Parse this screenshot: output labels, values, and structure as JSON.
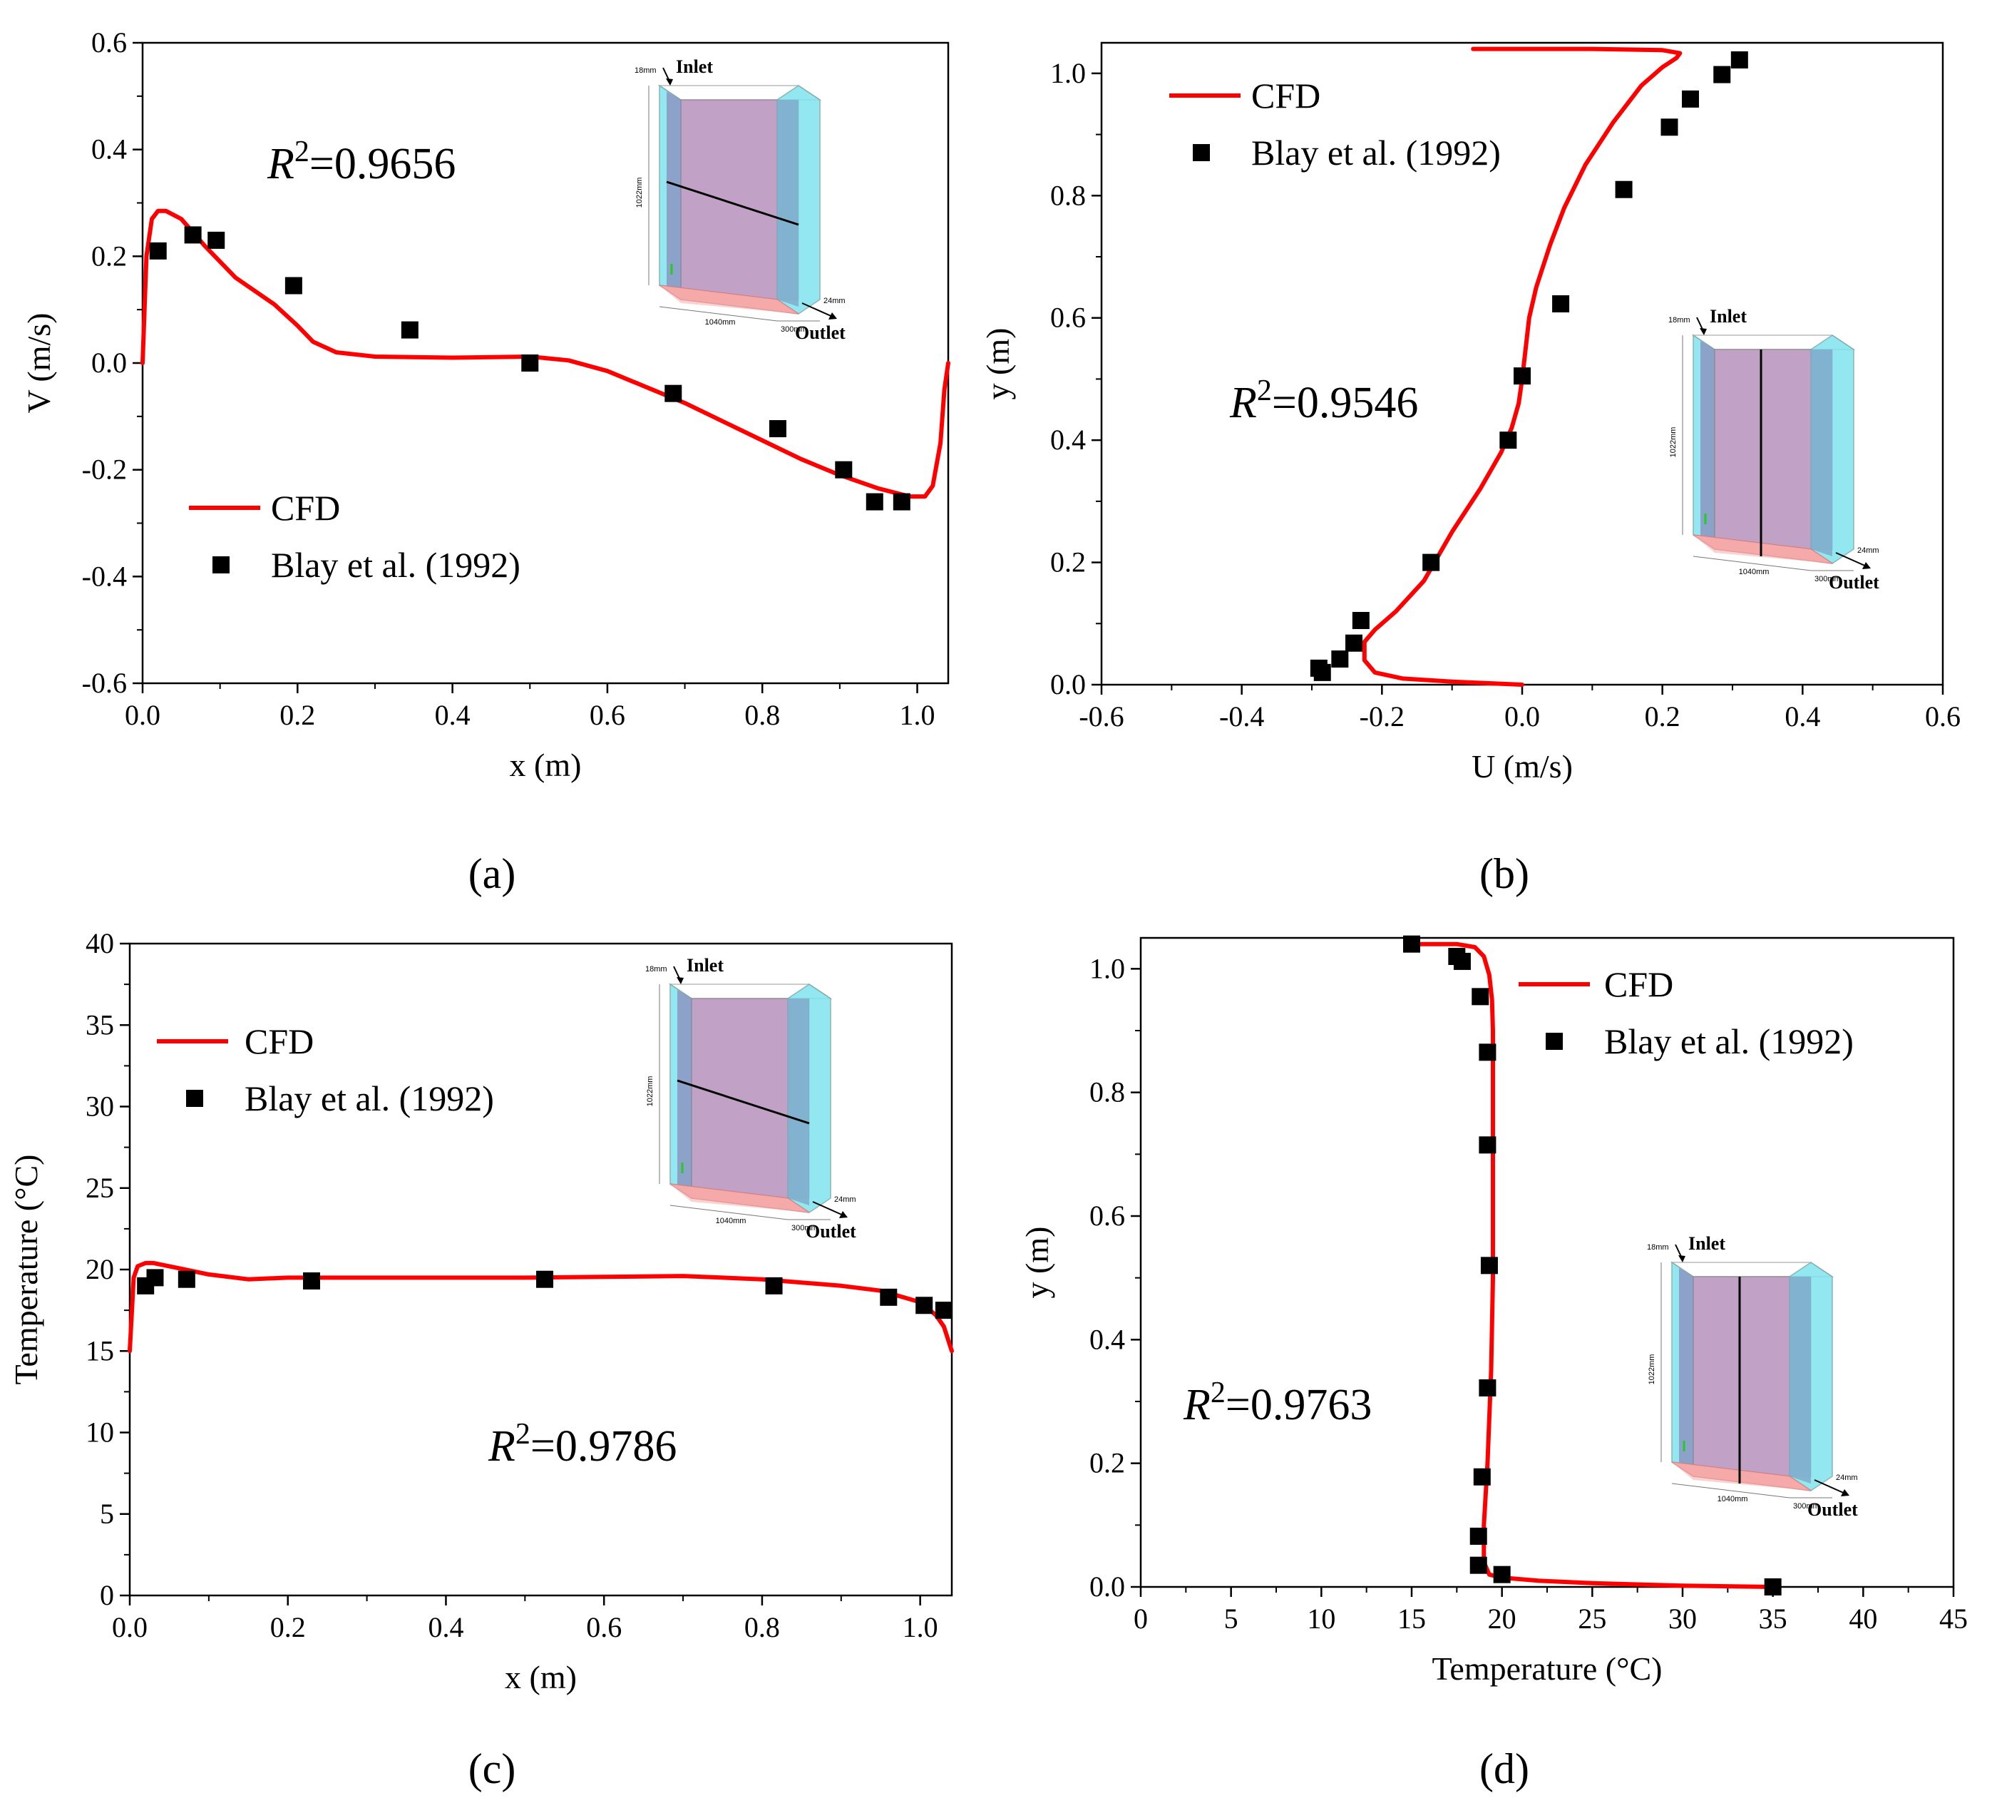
{
  "chart_data": [
    {
      "id": "a",
      "type": "line+scatter",
      "panel_label": "(a)",
      "xlabel": "x (m)",
      "ylabel": "V (m/s)",
      "xlim": [
        0,
        1.04
      ],
      "ylim": [
        -0.6,
        0.6
      ],
      "xticks": [
        "0.0",
        "0.2",
        "0.4",
        "0.6",
        "0.8",
        "1.0"
      ],
      "yticks": [
        "-0.6",
        "-0.4",
        "-0.2",
        "0.0",
        "0.2",
        "0.4",
        "0.6"
      ],
      "xtick_values": [
        0,
        0.2,
        0.4,
        0.6,
        0.8,
        1.0
      ],
      "ytick_values": [
        -0.6,
        -0.4,
        -0.2,
        0,
        0.2,
        0.4,
        0.6
      ],
      "r2_label": "R",
      "r2_exp": "2",
      "r2_value": "=0.9656",
      "legend": {
        "cfd": "CFD",
        "exp": "Blay et al. (1992)"
      },
      "series": [
        {
          "name": "CFD",
          "color": "#ff0000",
          "x": [
            0,
            0.005,
            0.012,
            0.02,
            0.03,
            0.05,
            0.08,
            0.12,
            0.17,
            0.2,
            0.22,
            0.25,
            0.3,
            0.4,
            0.5,
            0.55,
            0.6,
            0.65,
            0.7,
            0.75,
            0.8,
            0.85,
            0.9,
            0.95,
            0.99,
            1.01,
            1.02,
            1.03,
            1.035,
            1.04
          ],
          "y": [
            0,
            0.2,
            0.27,
            0.285,
            0.285,
            0.27,
            0.22,
            0.16,
            0.11,
            0.07,
            0.04,
            0.02,
            0.012,
            0.01,
            0.012,
            0.005,
            -0.015,
            -0.045,
            -0.075,
            -0.11,
            -0.145,
            -0.18,
            -0.21,
            -0.235,
            -0.25,
            -0.25,
            -0.23,
            -0.15,
            -0.05,
            0
          ]
        },
        {
          "name": "Blay et al. (1992)",
          "color": "#000000",
          "x": [
            0.02,
            0.065,
            0.095,
            0.195,
            0.345,
            0.5,
            0.685,
            0.82,
            0.905,
            0.945,
            0.98
          ],
          "y": [
            0.21,
            0.24,
            0.23,
            0.145,
            0.062,
            0.0,
            -0.057,
            -0.123,
            -0.2,
            -0.26,
            -0.26
          ]
        }
      ]
    },
    {
      "id": "b",
      "type": "line+scatter",
      "panel_label": "(b)",
      "xlabel": "U (m/s)",
      "ylabel": "y (m)",
      "xlim": [
        -0.6,
        0.6
      ],
      "ylim": [
        0,
        1.05
      ],
      "xticks": [
        "-0.6",
        "-0.4",
        "-0.2",
        "0.0",
        "0.2",
        "0.4",
        "0.6"
      ],
      "yticks": [
        "0.0",
        "0.2",
        "0.4",
        "0.6",
        "0.8",
        "1.0"
      ],
      "xtick_values": [
        -0.6,
        -0.4,
        -0.2,
        0,
        0.2,
        0.4,
        0.6
      ],
      "ytick_values": [
        0,
        0.2,
        0.4,
        0.6,
        0.8,
        1.0
      ],
      "r2_label": "R",
      "r2_exp": "2",
      "r2_value": "=0.9546",
      "legend": {
        "cfd": "CFD",
        "exp": "Blay et al. (1992)"
      },
      "series": [
        {
          "name": "CFD",
          "color": "#ff0000",
          "x": [
            0,
            -0.1,
            -0.17,
            -0.21,
            -0.225,
            -0.225,
            -0.21,
            -0.18,
            -0.14,
            -0.1,
            -0.06,
            -0.03,
            -0.015,
            -0.005,
            0.0,
            0.005,
            0.01,
            0.02,
            0.04,
            0.06,
            0.09,
            0.13,
            0.17,
            0.2,
            0.22,
            0.225,
            0.2,
            0.1,
            0.0,
            -0.07
          ],
          "y": [
            0,
            0.005,
            0.01,
            0.02,
            0.04,
            0.07,
            0.09,
            0.12,
            0.17,
            0.25,
            0.32,
            0.38,
            0.42,
            0.46,
            0.5,
            0.55,
            0.6,
            0.65,
            0.72,
            0.78,
            0.85,
            0.92,
            0.98,
            1.01,
            1.025,
            1.033,
            1.038,
            1.04,
            1.04,
            1.04
          ]
        },
        {
          "name": "Blay et al. (1992)",
          "color": "#000000",
          "x": [
            -0.29,
            -0.285,
            -0.26,
            -0.24,
            -0.23,
            -0.13,
            -0.02,
            0.0,
            0.055,
            0.145,
            0.21,
            0.24,
            0.285,
            0.31
          ],
          "y": [
            0.027,
            0.02,
            0.042,
            0.068,
            0.105,
            0.2,
            0.4,
            0.505,
            0.623,
            0.81,
            0.912,
            0.958,
            0.998,
            1.022
          ]
        }
      ]
    },
    {
      "id": "c",
      "type": "line+scatter",
      "panel_label": "(c)",
      "xlabel": "x (m)",
      "ylabel": "Temperature (°C)",
      "xlim": [
        0,
        1.04
      ],
      "ylim": [
        0,
        40
      ],
      "xticks": [
        "0.0",
        "0.2",
        "0.4",
        "0.6",
        "0.8",
        "1.0"
      ],
      "yticks": [
        "0",
        "5",
        "10",
        "15",
        "20",
        "25",
        "30",
        "35",
        "40"
      ],
      "xtick_values": [
        0,
        0.2,
        0.4,
        0.6,
        0.8,
        1.0
      ],
      "ytick_values": [
        0,
        5,
        10,
        15,
        20,
        25,
        30,
        35,
        40
      ],
      "r2_label": "R",
      "r2_exp": "2",
      "r2_value": "=0.9786",
      "legend": {
        "cfd": "CFD",
        "exp": "Blay et al. (1992)"
      },
      "series": [
        {
          "name": "CFD",
          "color": "#ff0000",
          "x": [
            0,
            0.005,
            0.01,
            0.02,
            0.03,
            0.05,
            0.1,
            0.15,
            0.2,
            0.3,
            0.4,
            0.5,
            0.6,
            0.7,
            0.8,
            0.9,
            0.95,
            1.0,
            1.02,
            1.03,
            1.04
          ],
          "y": [
            15,
            19.5,
            20.2,
            20.4,
            20.4,
            20.2,
            19.7,
            19.4,
            19.5,
            19.5,
            19.5,
            19.5,
            19.55,
            19.6,
            19.4,
            19.0,
            18.7,
            18.0,
            17.2,
            16.5,
            15
          ]
        },
        {
          "name": "Blay et al. (1992)",
          "color": "#000000",
          "x": [
            0.02,
            0.032,
            0.072,
            0.23,
            0.525,
            0.815,
            0.96,
            1.005,
            1.03
          ],
          "y": [
            19.0,
            19.5,
            19.4,
            19.3,
            19.4,
            19.0,
            18.3,
            17.8,
            17.5
          ]
        }
      ]
    },
    {
      "id": "d",
      "type": "line+scatter",
      "panel_label": "(d)",
      "xlabel": "Temperature (°C)",
      "ylabel": "y (m)",
      "xlim": [
        0,
        45
      ],
      "ylim": [
        0,
        1.05
      ],
      "xticks": [
        "0",
        "5",
        "10",
        "15",
        "20",
        "25",
        "30",
        "35",
        "40",
        "45"
      ],
      "yticks": [
        "0.0",
        "0.2",
        "0.4",
        "0.6",
        "0.8",
        "1.0"
      ],
      "xtick_values": [
        0,
        5,
        10,
        15,
        20,
        25,
        30,
        35,
        40,
        45
      ],
      "ytick_values": [
        0,
        0.2,
        0.4,
        0.6,
        0.8,
        1.0
      ],
      "r2_label": "R",
      "r2_exp": "2",
      "r2_value": "=0.9763",
      "legend": {
        "cfd": "CFD",
        "exp": "Blay et al. (1992)"
      },
      "series": [
        {
          "name": "CFD",
          "color": "#ff0000",
          "x": [
            35,
            30,
            25,
            22,
            20,
            19.3,
            19.0,
            19.0,
            19.2,
            19.4,
            19.5,
            19.5,
            19.5,
            19.5,
            19.45,
            19.3,
            19.0,
            18.5,
            17.5,
            15.0
          ],
          "y": [
            0,
            0.002,
            0.006,
            0.01,
            0.015,
            0.02,
            0.04,
            0.1,
            0.2,
            0.35,
            0.5,
            0.6,
            0.8,
            0.9,
            0.95,
            0.99,
            1.02,
            1.035,
            1.04,
            1.04
          ]
        },
        {
          "name": "Blay et al. (1992)",
          "color": "#000000",
          "x": [
            15,
            17.5,
            17.8,
            18.8,
            19.2,
            19.2,
            19.3,
            19.2,
            18.9,
            18.7,
            18.7,
            20.0,
            35
          ],
          "y": [
            1.04,
            1.02,
            1.012,
            0.955,
            0.865,
            0.715,
            0.52,
            0.322,
            0.178,
            0.082,
            0.035,
            0.02,
            0.0
          ]
        }
      ]
    }
  ],
  "insets": {
    "inlet": "Inlet",
    "outlet": "Outlet",
    "dim_18": "18mm",
    "dim_1022": "1022mm",
    "dim_1040": "1040mm",
    "dim_300": "300mm",
    "dim_24": "24mm"
  }
}
